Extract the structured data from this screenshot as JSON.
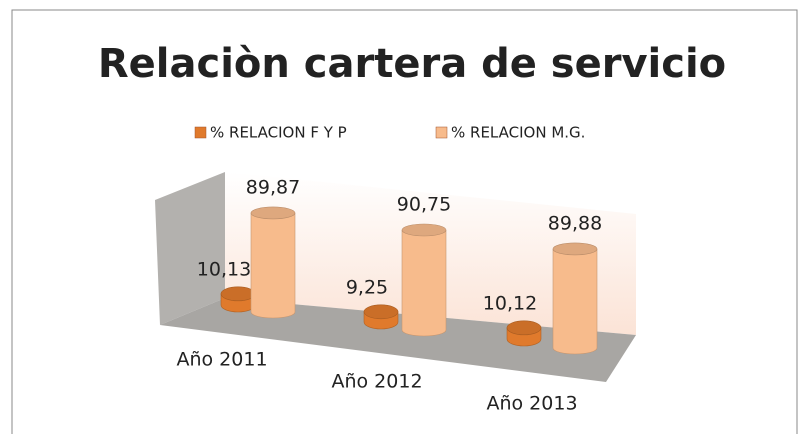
{
  "chart_data": {
    "type": "bar3d",
    "title": "Relaciòn cartera de servicio",
    "categories": [
      "Año 2011",
      "Año 2012",
      "Año 2013"
    ],
    "series": [
      {
        "name": "% RELACION F Y P",
        "color": "#e07a2c",
        "values": [
          10.13,
          9.25,
          10.12
        ],
        "value_labels": [
          "10,13",
          "9,25",
          "10,12"
        ]
      },
      {
        "name": "% RELACION M.G.",
        "color": "#f7bb8c",
        "values": [
          89.87,
          90.75,
          89.88
        ],
        "value_labels": [
          "89,87",
          "90,75",
          "89,88"
        ]
      }
    ],
    "legend": "top"
  }
}
